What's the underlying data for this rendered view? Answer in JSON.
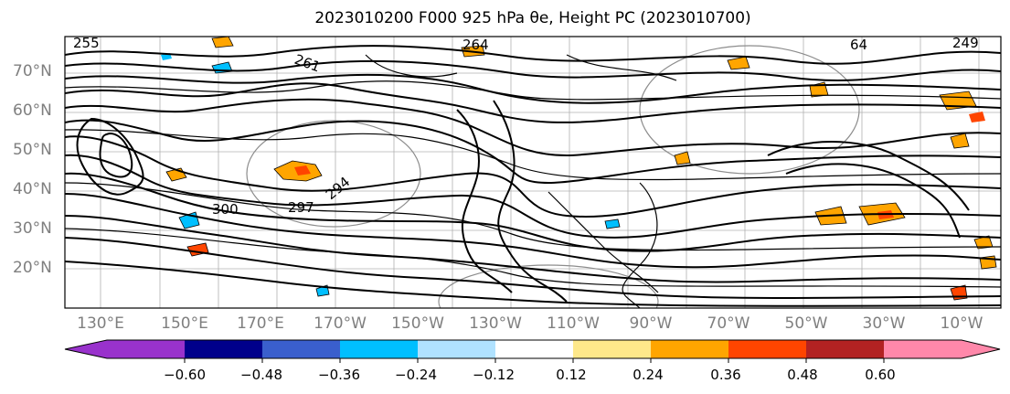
{
  "title": "2023010200 F000 925 hPa θe, Height PC (2023010700)",
  "lat_labels": [
    "70°N",
    "60°N",
    "50°N",
    "40°N",
    "30°N",
    "20°N"
  ],
  "lon_labels": [
    "130°E",
    "150°E",
    "170°E",
    "170°W",
    "150°W",
    "130°W",
    "110°W",
    "90°W",
    "70°W",
    "50°W",
    "30°W",
    "10°W"
  ],
  "contour_labels": [
    "255",
    "264",
    "261",
    "297",
    "294",
    "300",
    "64",
    "249"
  ],
  "colorbar": {
    "ticks": [
      "−0.60",
      "−0.48",
      "−0.36",
      "−0.24",
      "−0.12",
      "0.12",
      "0.24",
      "0.36",
      "0.48",
      "0.60"
    ],
    "colors": [
      "#9932cc",
      "#00008b",
      "#3a5fcd",
      "#00bfff",
      "#b0e2ff",
      "#ffffff",
      "#fee88a",
      "#ffa500",
      "#ff4500",
      "#b22222",
      "#ff88aa",
      "#ff88aa"
    ]
  }
}
